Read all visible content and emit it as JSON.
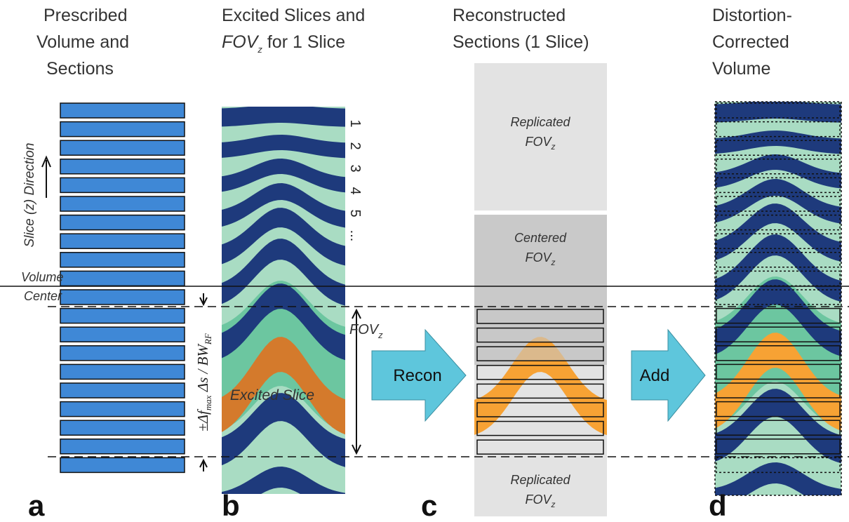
{
  "panel_a": {
    "title": [
      "Prescribed",
      "Volume and",
      "Sections"
    ],
    "direction_label": "Slice (z) Direction",
    "center_label": [
      "Volume",
      "Center"
    ],
    "letter": "a"
  },
  "panel_b": {
    "title_line1": "Excited Slices and",
    "title_line2": {
      "fov": "FOV",
      "sub": "z",
      "rest": " for 1 Slice"
    },
    "slice_numbers": [
      "1",
      "2",
      "3",
      "4",
      "5",
      "..."
    ],
    "excited_label": "Excited Slice",
    "shift_label": {
      "lead": "±Δf",
      "sub1": "max",
      "mid": " Δs / BW",
      "sub2": "RF"
    },
    "fov_label": {
      "fov": "FOV",
      "sub": "z"
    },
    "letter": "b"
  },
  "recon_arrow": "Recon",
  "panel_c": {
    "title": [
      "Reconstructed",
      "Sections (1 Slice)"
    ],
    "top_label": {
      "line1": "Replicated",
      "fov": "FOV",
      "sub": "z"
    },
    "center_label": {
      "line1": "Centered",
      "fov": "FOV",
      "sub": "z"
    },
    "bottom_label": {
      "line1": "Replicated",
      "fov": "FOV",
      "sub": "z"
    },
    "letter": "c"
  },
  "add_arrow": "Add",
  "panel_d": {
    "title": [
      "Distortion-",
      "Corrected",
      "Volume"
    ],
    "letter": "d"
  }
}
